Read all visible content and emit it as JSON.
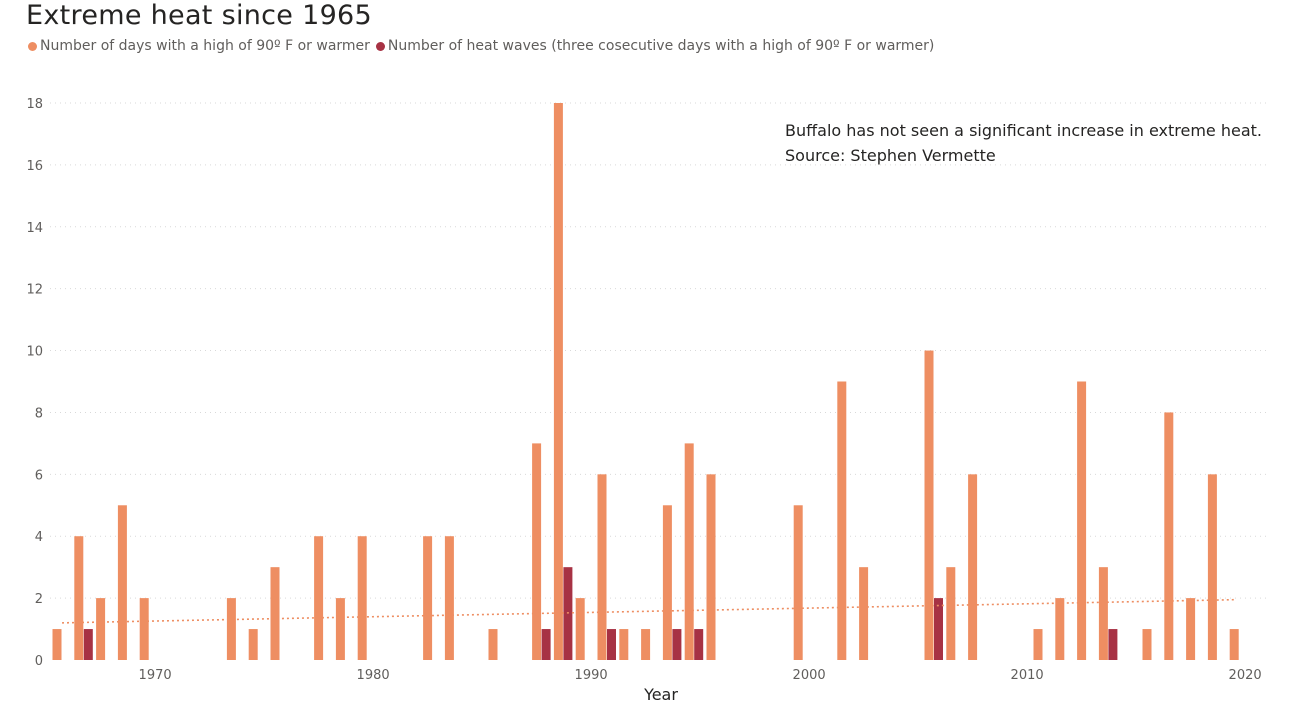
{
  "chart_data": {
    "type": "bar",
    "title": "Extreme heat since 1965",
    "xlabel": "Year",
    "ylabel": "",
    "ylim": [
      0,
      18
    ],
    "xlim": [
      1964.5,
      2020
    ],
    "yticks": [
      0,
      2,
      4,
      6,
      8,
      10,
      12,
      14,
      16,
      18
    ],
    "xticks": [
      1970,
      1980,
      1990,
      2000,
      2010,
      2020
    ],
    "grid": true,
    "legend_position": "top-left",
    "annotations": [
      "Buffalo has not seen a significant increase in extreme heat.",
      "Source: Stephen Vermette"
    ],
    "series": [
      {
        "name": "Number of days with a high of 90º F or warmer",
        "color": "#ee8e62",
        "points": [
          {
            "x": 1965,
            "y": 1
          },
          {
            "x": 1966,
            "y": 4
          },
          {
            "x": 1967,
            "y": 2
          },
          {
            "x": 1968,
            "y": 5
          },
          {
            "x": 1969,
            "y": 2
          },
          {
            "x": 1973,
            "y": 2
          },
          {
            "x": 1974,
            "y": 1
          },
          {
            "x": 1975,
            "y": 3
          },
          {
            "x": 1977,
            "y": 4
          },
          {
            "x": 1978,
            "y": 2
          },
          {
            "x": 1979,
            "y": 4
          },
          {
            "x": 1982,
            "y": 4
          },
          {
            "x": 1983,
            "y": 4
          },
          {
            "x": 1985,
            "y": 1
          },
          {
            "x": 1987,
            "y": 7
          },
          {
            "x": 1988,
            "y": 18
          },
          {
            "x": 1989,
            "y": 2
          },
          {
            "x": 1990,
            "y": 6
          },
          {
            "x": 1991,
            "y": 1
          },
          {
            "x": 1992,
            "y": 1
          },
          {
            "x": 1993,
            "y": 5
          },
          {
            "x": 1994,
            "y": 7
          },
          {
            "x": 1995,
            "y": 6
          },
          {
            "x": 1999,
            "y": 5
          },
          {
            "x": 2001,
            "y": 9
          },
          {
            "x": 2002,
            "y": 3
          },
          {
            "x": 2005,
            "y": 10
          },
          {
            "x": 2006,
            "y": 3
          },
          {
            "x": 2007,
            "y": 6
          },
          {
            "x": 2010,
            "y": 1
          },
          {
            "x": 2011,
            "y": 2
          },
          {
            "x": 2012,
            "y": 9
          },
          {
            "x": 2013,
            "y": 3
          },
          {
            "x": 2015,
            "y": 1
          },
          {
            "x": 2016,
            "y": 8
          },
          {
            "x": 2017,
            "y": 2
          },
          {
            "x": 2018,
            "y": 6
          },
          {
            "x": 2019,
            "y": 1
          }
        ]
      },
      {
        "name": "Number of heat waves (three cosecutive days with a high of 90º F or warmer)",
        "color": "#a73244",
        "points": [
          {
            "x": 1966,
            "y": 1
          },
          {
            "x": 1987,
            "y": 1
          },
          {
            "x": 1988,
            "y": 3
          },
          {
            "x": 1990,
            "y": 1
          },
          {
            "x": 1993,
            "y": 1
          },
          {
            "x": 1994,
            "y": 1
          },
          {
            "x": 2005,
            "y": 2
          },
          {
            "x": 2013,
            "y": 1
          }
        ]
      }
    ],
    "trendline": {
      "series": "Number of days with a high of 90º F or warmer",
      "style": "dotted",
      "color": "#ee8e62",
      "start": {
        "x": 1965,
        "y": 1.2
      },
      "end": {
        "x": 2019,
        "y": 1.95
      }
    }
  }
}
